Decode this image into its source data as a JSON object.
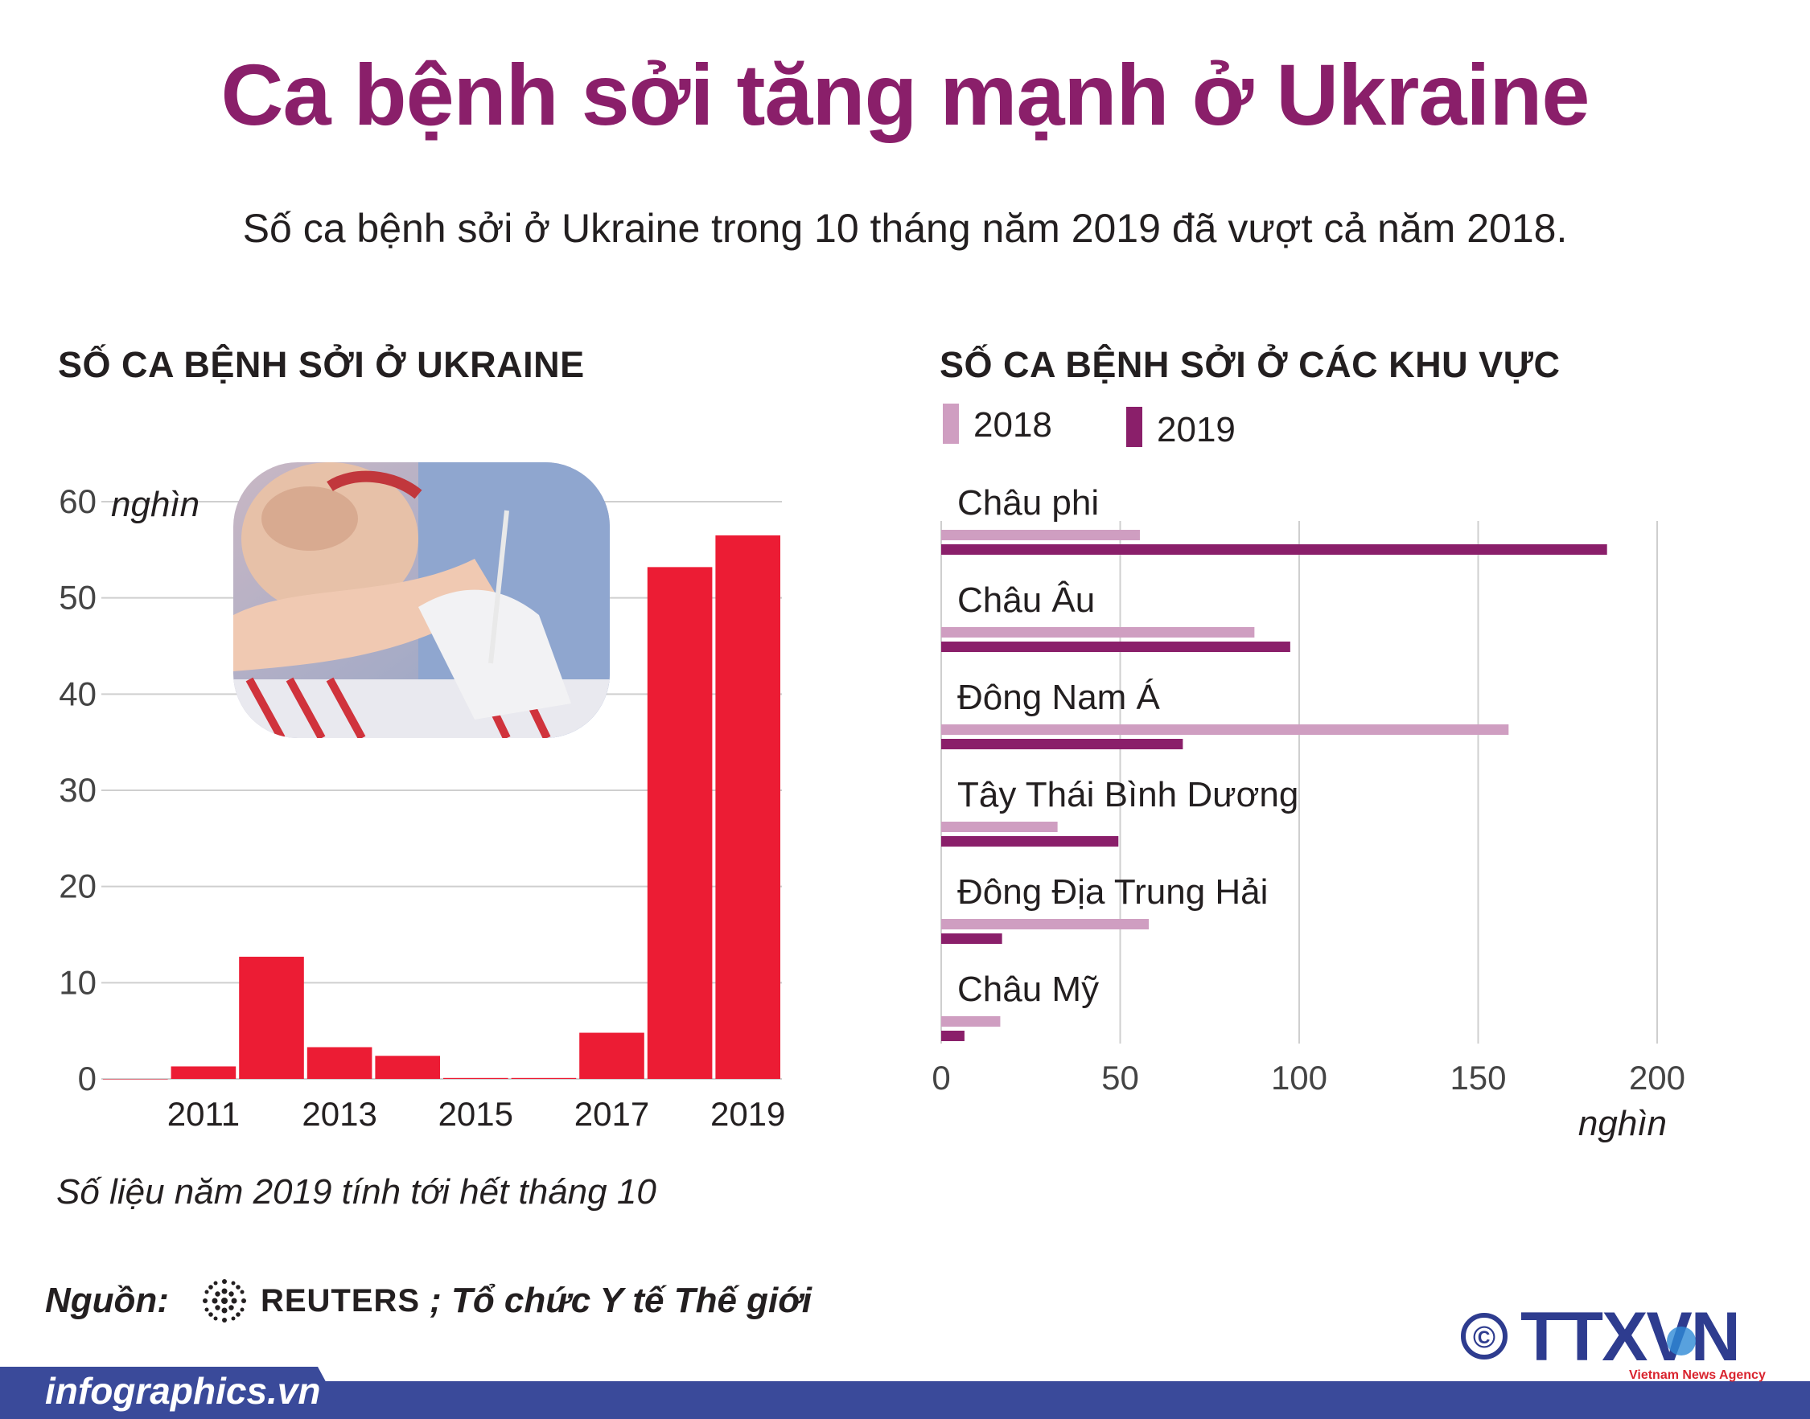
{
  "title": "Ca bệnh sởi tăng mạnh ở Ukraine",
  "subtitle": "Số ca bệnh sởi ở Ukraine trong 10 tháng năm 2019 đã vượt cả năm 2018.",
  "colors": {
    "title": "#8a1f6a",
    "bar_red": "#ec1c34",
    "bar_2018": "#cf9ec1",
    "bar_2019": "#8a1f6a",
    "grid": "#cfcfcf",
    "footer": "#3a4a9a"
  },
  "chart_data": [
    {
      "type": "bar",
      "title": "SỐ CA BỆNH SỞI Ở UKRAINE",
      "ylabel": "nghìn",
      "ylim": [
        0,
        60
      ],
      "yticks": [
        "0",
        "10",
        "20",
        "30",
        "40",
        "50",
        "60"
      ],
      "categories": [
        "2010",
        "2011",
        "2012",
        "2013",
        "2014",
        "2015",
        "2016",
        "2017",
        "2018",
        "2019"
      ],
      "xtick_labels": [
        "2011",
        "2013",
        "2015",
        "2017",
        "2019"
      ],
      "values": [
        0,
        1.3,
        12.7,
        3.3,
        2.4,
        0.1,
        0.1,
        4.8,
        53.2,
        56.5
      ],
      "grid": true,
      "note": "Số liệu năm 2019 tính tới hết tháng 10"
    },
    {
      "type": "bar",
      "orientation": "horizontal",
      "title": "SỐ CA BỆNH SỞI Ở CÁC KHU VỰC",
      "xlabel": "nghìn",
      "xlim": [
        0,
        200
      ],
      "xticks": [
        "0",
        "50",
        "100",
        "150",
        "200"
      ],
      "legend": "top-left",
      "categories": [
        "Châu phi",
        "Châu Âu",
        "Đông Nam Á",
        "Tây Thái Bình Dương",
        "Đông Địa Trung Hải",
        "Châu Mỹ"
      ],
      "series": [
        {
          "name": "2018",
          "values": [
            55.5,
            87.5,
            158.5,
            32.5,
            58,
            16.5
          ]
        },
        {
          "name": "2019",
          "values": [
            186,
            97.5,
            67.5,
            49.5,
            17,
            6.5
          ]
        }
      ],
      "grid": true
    }
  ],
  "source": {
    "label": "Nguồn:",
    "reuters": "REUTERS",
    "rest": "; Tổ chức Y tế Thế giới"
  },
  "footer": {
    "site": "infographics.vn",
    "agency": "TTXVN",
    "agency_sub": "Vietnam News Agency",
    "copyright_symbol": "©"
  }
}
